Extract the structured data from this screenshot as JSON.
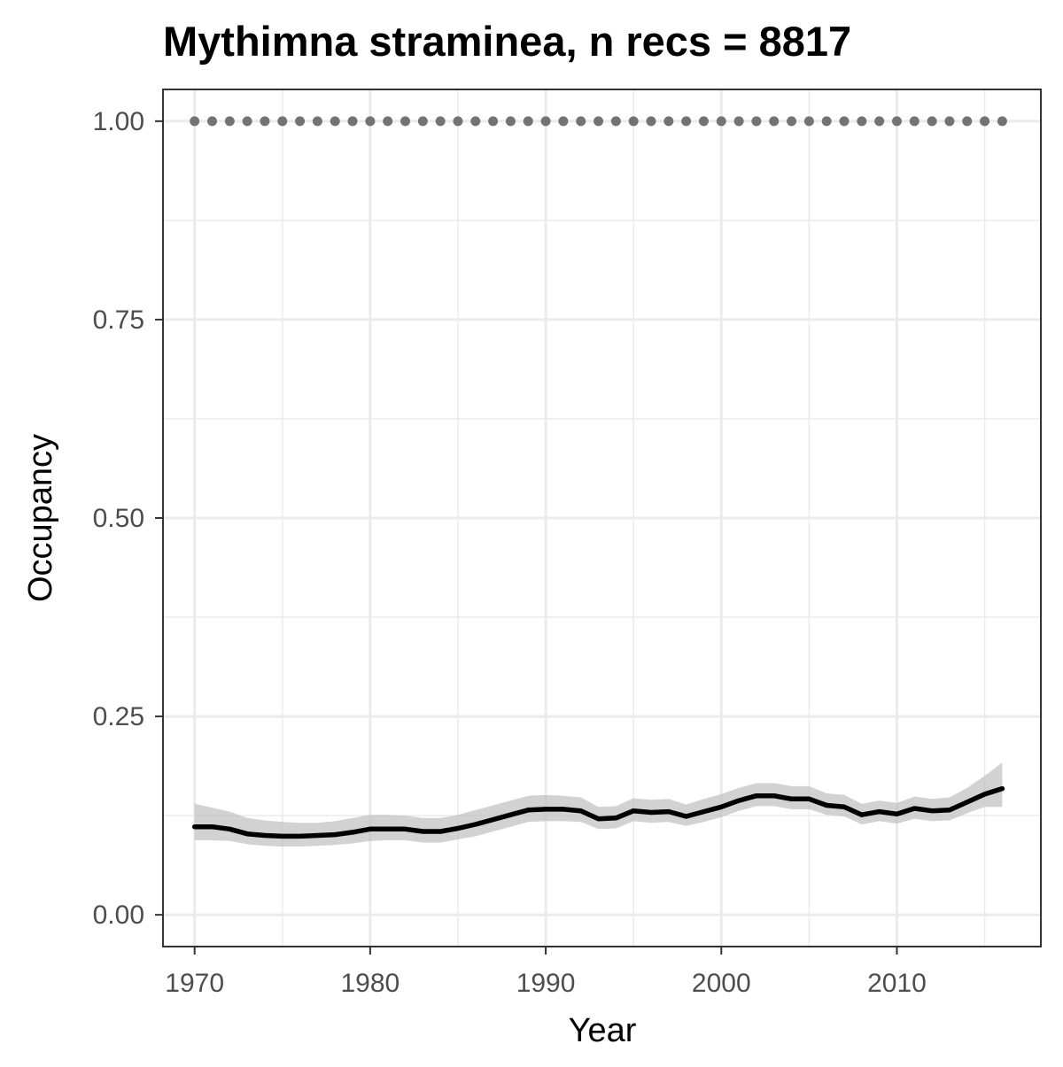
{
  "chart_data": {
    "type": "line",
    "title": "Mythimna straminea, n recs = 8817",
    "xlabel": "Year",
    "ylabel": "Occupancy",
    "xlim": [
      1968.2,
      2018.2
    ],
    "ylim": [
      -0.04,
      1.04
    ],
    "x_ticks": [
      1970,
      1980,
      1990,
      2000,
      2010
    ],
    "y_ticks": [
      0.0,
      0.25,
      0.5,
      0.75,
      1.0
    ],
    "x_tick_labels": [
      "1970",
      "1980",
      "1990",
      "2000",
      "2010"
    ],
    "y_tick_labels": [
      "0.00",
      "0.25",
      "0.50",
      "0.75",
      "1.00"
    ],
    "grid": true,
    "theme": "bw",
    "colors": {
      "line": "#000000",
      "ribbon": "#bfbfbf",
      "dots": "#737373",
      "grid": "#ebebeb",
      "border": "#333333"
    },
    "series": [
      {
        "type": "line_with_ribbon",
        "x": [
          1970,
          1971,
          1972,
          1973,
          1974,
          1975,
          1976,
          1977,
          1978,
          1979,
          1980,
          1981,
          1982,
          1983,
          1984,
          1985,
          1986,
          1987,
          1988,
          1989,
          1990,
          1991,
          1992,
          1993,
          1994,
          1995,
          1996,
          1997,
          1998,
          1999,
          2000,
          2001,
          2002,
          2003,
          2004,
          2005,
          2006,
          2007,
          2008,
          2009,
          2010,
          2011,
          2012,
          2013,
          2014,
          2015,
          2016
        ],
        "values": [
          0.111,
          0.111,
          0.108,
          0.102,
          0.1,
          0.099,
          0.099,
          0.1,
          0.101,
          0.104,
          0.108,
          0.108,
          0.108,
          0.105,
          0.105,
          0.109,
          0.114,
          0.12,
          0.126,
          0.132,
          0.133,
          0.133,
          0.131,
          0.121,
          0.122,
          0.131,
          0.129,
          0.13,
          0.124,
          0.13,
          0.136,
          0.144,
          0.15,
          0.15,
          0.146,
          0.146,
          0.138,
          0.136,
          0.126,
          0.13,
          0.127,
          0.134,
          0.131,
          0.132,
          0.142,
          0.152,
          0.159
        ],
        "lower": [
          0.094,
          0.094,
          0.093,
          0.089,
          0.087,
          0.086,
          0.086,
          0.087,
          0.088,
          0.09,
          0.093,
          0.094,
          0.094,
          0.091,
          0.091,
          0.095,
          0.099,
          0.105,
          0.111,
          0.117,
          0.118,
          0.118,
          0.117,
          0.108,
          0.109,
          0.118,
          0.116,
          0.117,
          0.112,
          0.117,
          0.123,
          0.131,
          0.137,
          0.137,
          0.133,
          0.133,
          0.126,
          0.124,
          0.114,
          0.118,
          0.115,
          0.121,
          0.118,
          0.119,
          0.128,
          0.136,
          0.136
        ],
        "upper": [
          0.14,
          0.135,
          0.13,
          0.122,
          0.119,
          0.117,
          0.116,
          0.116,
          0.118,
          0.122,
          0.126,
          0.126,
          0.125,
          0.122,
          0.122,
          0.126,
          0.132,
          0.138,
          0.144,
          0.15,
          0.151,
          0.15,
          0.148,
          0.136,
          0.137,
          0.147,
          0.145,
          0.146,
          0.139,
          0.146,
          0.152,
          0.16,
          0.166,
          0.166,
          0.162,
          0.162,
          0.153,
          0.151,
          0.14,
          0.144,
          0.141,
          0.149,
          0.146,
          0.148,
          0.16,
          0.175,
          0.192
        ]
      },
      {
        "type": "dots",
        "x": [
          1970,
          1971,
          1972,
          1973,
          1974,
          1975,
          1976,
          1977,
          1978,
          1979,
          1980,
          1981,
          1982,
          1983,
          1984,
          1985,
          1986,
          1987,
          1988,
          1989,
          1990,
          1991,
          1992,
          1993,
          1994,
          1995,
          1996,
          1997,
          1998,
          1999,
          2000,
          2001,
          2002,
          2003,
          2004,
          2005,
          2006,
          2007,
          2008,
          2009,
          2010,
          2011,
          2012,
          2013,
          2014,
          2015,
          2016
        ],
        "values": [
          1,
          1,
          1,
          1,
          1,
          1,
          1,
          1,
          1,
          1,
          1,
          1,
          1,
          1,
          1,
          1,
          1,
          1,
          1,
          1,
          1,
          1,
          1,
          1,
          1,
          1,
          1,
          1,
          1,
          1,
          1,
          1,
          1,
          1,
          1,
          1,
          1,
          1,
          1,
          1,
          1,
          1,
          1,
          1,
          1,
          1,
          1
        ]
      }
    ]
  }
}
